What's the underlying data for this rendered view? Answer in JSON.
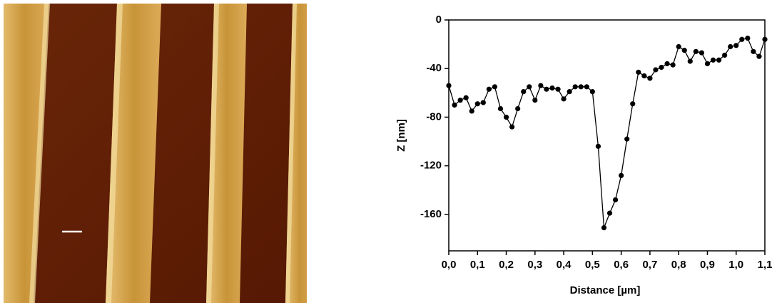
{
  "chart_data": {
    "type": "line",
    "xlabel": "Distance [µm]",
    "ylabel": "Z [nm]",
    "x": [
      0,
      0.02,
      0.04,
      0.06,
      0.08,
      0.1,
      0.12,
      0.14,
      0.16,
      0.18,
      0.2,
      0.22,
      0.24,
      0.26,
      0.28,
      0.3,
      0.32,
      0.34,
      0.36,
      0.38,
      0.4,
      0.42,
      0.44,
      0.46,
      0.48,
      0.5,
      0.52,
      0.54,
      0.56,
      0.58,
      0.6,
      0.62,
      0.64,
      0.66,
      0.68,
      0.7,
      0.72,
      0.74,
      0.76,
      0.78,
      0.8,
      0.82,
      0.84,
      0.86,
      0.88,
      0.9,
      0.92,
      0.94,
      0.96,
      0.98,
      1.0,
      1.02,
      1.04,
      1.06,
      1.08,
      1.1
    ],
    "series": [
      {
        "name": "Z",
        "color": "#000000",
        "values": [
          -54,
          -70,
          -66,
          -64,
          -75,
          -69,
          -68,
          -57,
          -55,
          -73,
          -80,
          -88,
          -73,
          -59,
          -55,
          -66,
          -54,
          -57,
          -56,
          -57,
          -65,
          -59,
          -55,
          -55,
          -55,
          -59,
          -104,
          -171,
          -159,
          -148,
          -128,
          -98,
          -69,
          -43,
          -46,
          -48,
          -41,
          -39,
          -36,
          -37,
          -22,
          -25,
          -34,
          -26,
          -27,
          -36,
          -33,
          -33,
          -29,
          -22,
          -21,
          -16,
          -15,
          -26,
          -30,
          -16
        ]
      }
    ],
    "xlim": [
      0,
      1.1
    ],
    "ylim": [
      -190,
      0
    ],
    "xticks": [
      {
        "value": 0,
        "label": "0,0"
      },
      {
        "value": 0.1,
        "label": "0,1"
      },
      {
        "value": 0.2,
        "label": "0,2"
      },
      {
        "value": 0.3,
        "label": "0,3"
      },
      {
        "value": 0.4,
        "label": "0,4"
      },
      {
        "value": 0.5,
        "label": "0,5"
      },
      {
        "value": 0.6,
        "label": "0,6"
      },
      {
        "value": 0.7,
        "label": "0,7"
      },
      {
        "value": 0.8,
        "label": "0,8"
      },
      {
        "value": 0.9,
        "label": "0,9"
      },
      {
        "value": 1.0,
        "label": "1,0"
      },
      {
        "value": 1.1,
        "label": "1,1"
      }
    ],
    "yticks": [
      0,
      -40,
      -80,
      -120,
      -160
    ]
  }
}
